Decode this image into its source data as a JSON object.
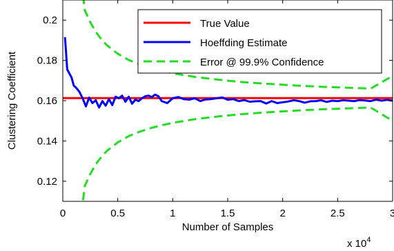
{
  "chart_data": {
    "type": "line",
    "xlabel": "Number of Samples",
    "ylabel": "Clustering Coefficient",
    "x_multiplier_label": "x 10",
    "x_multiplier_exponent": "4",
    "xlim": [
      0,
      30000
    ],
    "ylim": [
      0.11,
      0.21
    ],
    "grid": false,
    "legend_position": "top-right",
    "x_ticks": [
      0,
      5000,
      10000,
      15000,
      20000,
      25000,
      30000
    ],
    "x_tick_labels": [
      "0",
      "0.5",
      "1",
      "1.5",
      "2",
      "2.5",
      "3"
    ],
    "y_ticks": [
      0.12,
      0.14,
      0.16,
      0.18,
      0.2
    ],
    "y_tick_labels": [
      "0.12",
      "0.14",
      "0.16",
      "0.18",
      "0.2"
    ],
    "series": [
      {
        "name": "True Value",
        "color": "#ff0000",
        "style": "solid",
        "x": [
          0,
          30000
        ],
        "y": [
          0.1613,
          0.1613
        ]
      },
      {
        "name": "Hoeffding Estimate",
        "color": "#0000ff",
        "style": "solid",
        "x": [
          200,
          400,
          600,
          800,
          1000,
          1200,
          1500,
          1800,
          2100,
          2400,
          2700,
          3000,
          3300,
          3600,
          3900,
          4200,
          4500,
          4800,
          5100,
          5400,
          5700,
          6000,
          6300,
          6600,
          6900,
          7200,
          7500,
          7800,
          8100,
          8400,
          8700,
          9000,
          9500,
          10000,
          10500,
          11000,
          11500,
          12000,
          12500,
          13000,
          13500,
          14000,
          14500,
          15000,
          15500,
          16000,
          16500,
          17000,
          17500,
          18000,
          18500,
          19000,
          19500,
          20000,
          20500,
          21000,
          21500,
          22000,
          22500,
          23000,
          23500,
          24000,
          24500,
          25000,
          25500,
          26000,
          26500,
          27000,
          27500,
          28000,
          28500,
          29000,
          29500,
          30000
        ],
        "y": [
          0.1915,
          0.1755,
          0.1735,
          0.1715,
          0.1675,
          0.1665,
          0.1645,
          0.1612,
          0.1572,
          0.1615,
          0.1588,
          0.1602,
          0.1566,
          0.1598,
          0.1575,
          0.1608,
          0.1578,
          0.162,
          0.1612,
          0.1625,
          0.1595,
          0.162,
          0.1585,
          0.1605,
          0.1598,
          0.1612,
          0.1622,
          0.1625,
          0.1618,
          0.163,
          0.1622,
          0.1598,
          0.1588,
          0.1612,
          0.1618,
          0.1608,
          0.1605,
          0.1612,
          0.1598,
          0.1606,
          0.1608,
          0.1612,
          0.1616,
          0.1604,
          0.1608,
          0.1598,
          0.1603,
          0.1595,
          0.1597,
          0.1598,
          0.1586,
          0.1598,
          0.1588,
          0.1592,
          0.1596,
          0.1602,
          0.1598,
          0.159,
          0.1597,
          0.1598,
          0.1602,
          0.1594,
          0.16,
          0.1598,
          0.1602,
          0.16,
          0.1598,
          0.1603,
          0.1601,
          0.1598,
          0.1605,
          0.16,
          0.1604,
          0.16
        ]
      },
      {
        "name": "Error @ 99.9% Confidence",
        "color": "#22dd22",
        "style": "dashed",
        "x": [
          1700,
          2000,
          2500,
          3000,
          3500,
          4000,
          5000,
          6000,
          7000,
          8000,
          9000,
          10000,
          12000,
          14000,
          16000,
          18000,
          20000,
          22000,
          24000,
          26000,
          28000,
          30000
        ],
        "y": [
          0.2185,
          0.2049,
          0.199,
          0.1942,
          0.1905,
          0.1876,
          0.1833,
          0.1802,
          0.178,
          0.1762,
          0.1748,
          0.1736,
          0.1718,
          0.1705,
          0.1694,
          0.1686,
          0.1679,
          0.1673,
          0.1668,
          0.1664,
          0.166,
          0.1723
        ],
        "y_lower": [
          0.1041,
          0.1177,
          0.1236,
          0.1284,
          0.1321,
          0.135,
          0.1393,
          0.1424,
          0.1446,
          0.1464,
          0.1478,
          0.149,
          0.1508,
          0.1521,
          0.1532,
          0.154,
          0.1547,
          0.1553,
          0.1558,
          0.1562,
          0.1566,
          0.15
        ]
      }
    ]
  }
}
